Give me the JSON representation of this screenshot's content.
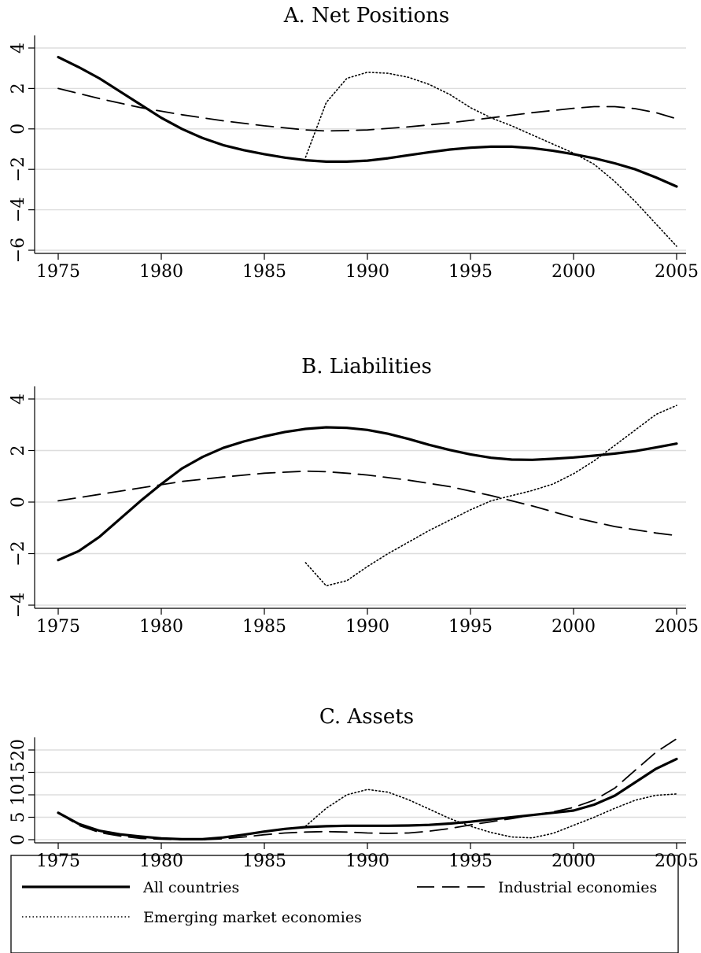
{
  "chart_data": {
    "type": "line",
    "x_ticks": [
      1975,
      1980,
      1985,
      1990,
      1995,
      2000,
      2005
    ],
    "series_styles": [
      {
        "key": "all",
        "dash": "solid"
      },
      {
        "key": "industrial",
        "dash": "dashed"
      },
      {
        "key": "emerging",
        "dash": "dotted"
      }
    ],
    "legend": {
      "position": "bottom",
      "items": [
        {
          "key": "all",
          "label": "All countries"
        },
        {
          "key": "industrial",
          "label": "Industrial economies"
        },
        {
          "key": "emerging",
          "label": "Emerging market economies"
        }
      ]
    },
    "panels": [
      {
        "title": "A. Net Positions",
        "grid": true,
        "xlim": [
          1975,
          2005
        ],
        "ylim": [
          -6,
          4
        ],
        "y_ticks": [
          -6,
          -4,
          -2,
          0,
          2,
          4
        ],
        "y_tick_labels": [
          "−6",
          "−4",
          "−2",
          "0",
          "2",
          "4"
        ],
        "series": [
          {
            "key": "all",
            "x": [
              1975,
              1976,
              1977,
              1978,
              1979,
              1980,
              1981,
              1982,
              1983,
              1984,
              1985,
              1986,
              1987,
              1988,
              1989,
              1990,
              1991,
              1992,
              1993,
              1994,
              1995,
              1996,
              1997,
              1998,
              1999,
              2000,
              2001,
              2002,
              2003,
              2004,
              2005
            ],
            "y": [
              3.55,
              3.05,
              2.5,
              1.85,
              1.2,
              0.55,
              0.0,
              -0.45,
              -0.8,
              -1.05,
              -1.25,
              -1.42,
              -1.55,
              -1.62,
              -1.62,
              -1.57,
              -1.45,
              -1.3,
              -1.15,
              -1.02,
              -0.93,
              -0.88,
              -0.88,
              -0.95,
              -1.08,
              -1.25,
              -1.45,
              -1.7,
              -2.0,
              -2.4,
              -2.85
            ]
          },
          {
            "key": "industrial",
            "x": [
              1975,
              1977,
              1979,
              1981,
              1983,
              1985,
              1987,
              1988,
              1989,
              1990,
              1992,
              1994,
              1996,
              1998,
              2000,
              2001,
              2002,
              2003,
              2004,
              2005
            ],
            "y": [
              2.0,
              1.5,
              1.05,
              0.7,
              0.4,
              0.15,
              -0.05,
              -0.1,
              -0.08,
              -0.05,
              0.1,
              0.3,
              0.55,
              0.8,
              1.02,
              1.1,
              1.1,
              1.0,
              0.8,
              0.5
            ]
          },
          {
            "key": "emerging",
            "x": [
              1987,
              1988,
              1989,
              1990,
              1991,
              1992,
              1993,
              1994,
              1995,
              1996,
              1997,
              1998,
              1999,
              2000,
              2001,
              2002,
              2003,
              2004,
              2005
            ],
            "y": [
              -1.4,
              1.3,
              2.5,
              2.8,
              2.75,
              2.55,
              2.2,
              1.7,
              1.05,
              0.55,
              0.15,
              -0.3,
              -0.75,
              -1.2,
              -1.75,
              -2.6,
              -3.6,
              -4.7,
              -5.8
            ]
          }
        ]
      },
      {
        "title": "B. Liabilities",
        "grid": true,
        "xlim": [
          1975,
          2005
        ],
        "ylim": [
          -4,
          4
        ],
        "y_ticks": [
          -4,
          -2,
          0,
          2,
          4
        ],
        "y_tick_labels": [
          "−4",
          "−2",
          "0",
          "2",
          "4"
        ],
        "series": [
          {
            "key": "all",
            "x": [
              1975,
              1976,
              1977,
              1978,
              1979,
              1980,
              1981,
              1982,
              1983,
              1984,
              1985,
              1986,
              1987,
              1988,
              1989,
              1990,
              1991,
              1992,
              1993,
              1994,
              1995,
              1996,
              1997,
              1998,
              1999,
              2000,
              2001,
              2002,
              2003,
              2004,
              2005
            ],
            "y": [
              -2.25,
              -1.9,
              -1.35,
              -0.65,
              0.05,
              0.7,
              1.3,
              1.75,
              2.1,
              2.35,
              2.55,
              2.72,
              2.84,
              2.9,
              2.88,
              2.8,
              2.65,
              2.45,
              2.22,
              2.02,
              1.85,
              1.72,
              1.65,
              1.64,
              1.68,
              1.73,
              1.8,
              1.88,
              1.98,
              2.12,
              2.27
            ]
          },
          {
            "key": "industrial",
            "x": [
              1975,
              1977,
              1979,
              1981,
              1983,
              1985,
              1987,
              1988,
              1989,
              1990,
              1992,
              1994,
              1996,
              1998,
              2000,
              2002,
              2004,
              2005
            ],
            "y": [
              0.05,
              0.3,
              0.55,
              0.8,
              0.97,
              1.12,
              1.2,
              1.18,
              1.12,
              1.05,
              0.85,
              0.6,
              0.25,
              -0.15,
              -0.6,
              -0.95,
              -1.2,
              -1.3
            ]
          },
          {
            "key": "emerging",
            "x": [
              1987,
              1988,
              1989,
              1990,
              1991,
              1992,
              1993,
              1994,
              1995,
              1996,
              1997,
              1998,
              1999,
              2000,
              2001,
              2002,
              2003,
              2004,
              2005
            ],
            "y": [
              -2.35,
              -3.25,
              -3.05,
              -2.5,
              -2.0,
              -1.55,
              -1.1,
              -0.7,
              -0.3,
              0.05,
              0.25,
              0.45,
              0.7,
              1.1,
              1.6,
              2.2,
              2.8,
              3.4,
              3.75
            ]
          }
        ]
      },
      {
        "title": "C. Assets",
        "grid": true,
        "xlim": [
          1975,
          2005
        ],
        "ylim": [
          0,
          20
        ],
        "y_ticks": [
          0,
          5,
          10,
          15,
          20
        ],
        "y_tick_labels": [
          "0",
          "5",
          "10",
          "15",
          "20"
        ],
        "series": [
          {
            "key": "all",
            "x": [
              1975,
              1976,
              1977,
              1978,
              1979,
              1980,
              1981,
              1982,
              1983,
              1984,
              1985,
              1986,
              1987,
              1988,
              1989,
              1990,
              1991,
              1992,
              1993,
              1994,
              1995,
              1996,
              1997,
              1998,
              1999,
              2000,
              2001,
              2002,
              2003,
              2004,
              2005
            ],
            "y": [
              6.0,
              3.5,
              2.0,
              1.2,
              0.7,
              0.3,
              0.1,
              0.1,
              0.5,
              1.1,
              1.8,
              2.4,
              2.8,
              3.0,
              3.1,
              3.1,
              3.1,
              3.15,
              3.3,
              3.6,
              4.0,
              4.5,
              5.0,
              5.5,
              6.0,
              6.5,
              7.8,
              9.8,
              12.8,
              15.8,
              18.0
            ]
          },
          {
            "key": "industrial",
            "x": [
              1975,
              1976,
              1977,
              1978,
              1979,
              1980,
              1981,
              1982,
              1983,
              1984,
              1985,
              1986,
              1987,
              1988,
              1989,
              1990,
              1991,
              1992,
              1993,
              1994,
              1995,
              1996,
              1997,
              1998,
              1999,
              2000,
              2001,
              2002,
              2003,
              2004,
              2005
            ],
            "y": [
              6.0,
              3.2,
              1.6,
              0.8,
              0.3,
              0.1,
              0.0,
              0.0,
              0.2,
              0.6,
              1.1,
              1.5,
              1.7,
              1.8,
              1.7,
              1.5,
              1.4,
              1.5,
              1.9,
              2.5,
              3.3,
              4.0,
              4.7,
              5.5,
              6.2,
              7.2,
              8.8,
              11.5,
              15.5,
              19.5,
              22.5
            ]
          },
          {
            "key": "emerging",
            "x": [
              1987,
              1988,
              1989,
              1990,
              1991,
              1992,
              1993,
              1994,
              1995,
              1996,
              1997,
              1998,
              1999,
              2000,
              2001,
              2002,
              2003,
              2004,
              2005
            ],
            "y": [
              3.0,
              7.0,
              10.0,
              11.2,
              10.6,
              8.9,
              6.8,
              4.7,
              3.0,
              1.6,
              0.6,
              0.4,
              1.4,
              3.2,
              5.0,
              7.0,
              8.8,
              9.9,
              10.2
            ]
          }
        ]
      }
    ]
  }
}
